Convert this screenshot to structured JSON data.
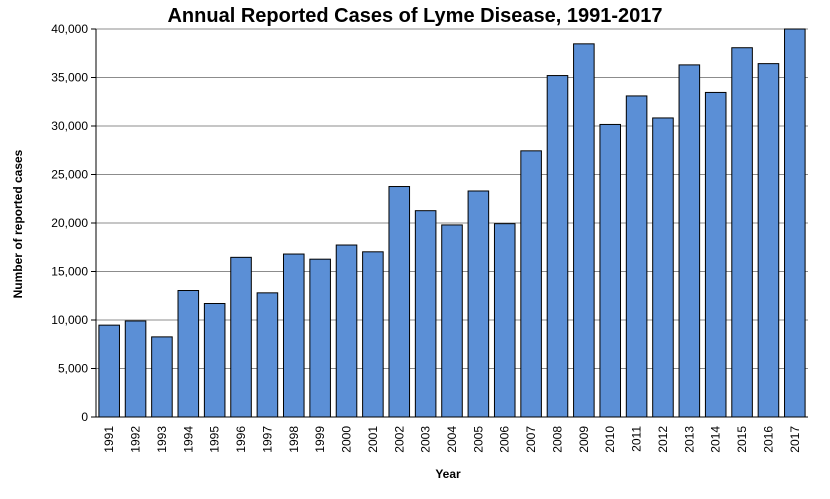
{
  "chart_data": {
    "type": "bar",
    "title": "Annual Reported Cases of Lyme Disease, 1991-2017",
    "xlabel": "Year",
    "ylabel": "Number of reported cases",
    "ylim": [
      0,
      40000
    ],
    "yticks": [
      "0",
      "5,000",
      "10,000",
      "15,000",
      "20,000",
      "25,000",
      "30,000",
      "35,000",
      "40,000"
    ],
    "ytick_values": [
      0,
      5000,
      10000,
      15000,
      20000,
      25000,
      30000,
      35000,
      40000
    ],
    "grid": true,
    "legend": "none",
    "bar_color": "#5B8FD6",
    "categories": [
      "1991",
      "1992",
      "1993",
      "1994",
      "1995",
      "1996",
      "1997",
      "1998",
      "1999",
      "2000",
      "2001",
      "2002",
      "2003",
      "2004",
      "2005",
      "2006",
      "2007",
      "2008",
      "2009",
      "2010",
      "2011",
      "2012",
      "2013",
      "2014",
      "2015",
      "2016",
      "2017"
    ],
    "values": [
      9470,
      9900,
      8260,
      13040,
      11700,
      16460,
      12800,
      16800,
      16270,
      17730,
      17030,
      23760,
      21270,
      19800,
      23300,
      19930,
      27440,
      35200,
      38470,
      30160,
      33100,
      30830,
      36300,
      33460,
      38070,
      36430,
      40000
    ]
  }
}
